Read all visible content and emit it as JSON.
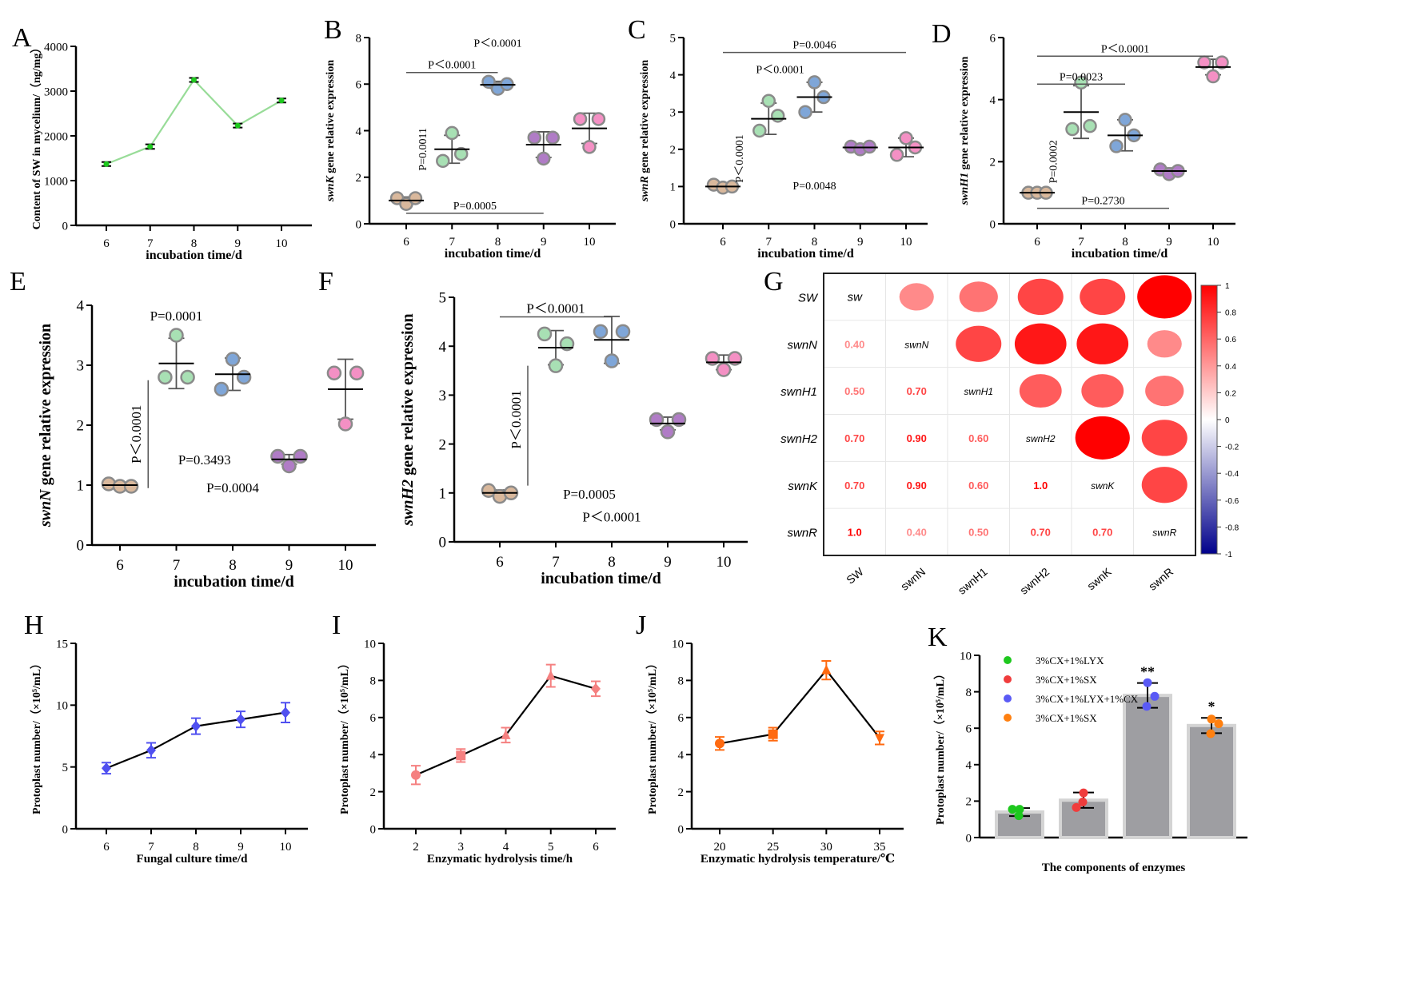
{
  "chart_data": [
    {
      "panel": "A",
      "type": "line",
      "x": [
        6,
        7,
        8,
        9,
        10
      ],
      "y": [
        1370,
        1760,
        3250,
        2230,
        2790
      ],
      "yerr": [
        45,
        50,
        45,
        45,
        45
      ],
      "ylim": [
        0,
        4000
      ],
      "yticks": [
        0,
        1000,
        2000,
        3000,
        4000
      ],
      "xlabel": "incubation time/d",
      "ylabel": "Content of SW in mycelium/（ng/mg）",
      "line_color": "#98dc98",
      "marker_color": "#1ec81e",
      "marker": "circle"
    },
    {
      "panel": "B",
      "type": "dots",
      "x": [
        6,
        7,
        8,
        9,
        10
      ],
      "ylim": [
        0,
        8
      ],
      "yticks": [
        0,
        2,
        4,
        6,
        8
      ],
      "xlabel": "incubation time/d",
      "ylabel_gene": "swnK",
      "ylabel": " gene relative expression",
      "points": [
        [
          1.1,
          0.85,
          1.1
        ],
        [
          2.7,
          3.9,
          3.0
        ],
        [
          6.1,
          5.8,
          6.0
        ],
        [
          3.7,
          2.8,
          3.7
        ],
        [
          4.5,
          3.3,
          4.5
        ]
      ],
      "mean": [
        1.0,
        3.2,
        5.97,
        3.4,
        4.1
      ],
      "sd": [
        0.15,
        0.6,
        0.15,
        0.55,
        0.65
      ],
      "annotations": [
        {
          "text": "P＜0.0001",
          "x": 8,
          "y": 7.6
        },
        {
          "text": "P＜0.0001",
          "from": 6,
          "to": 8,
          "y": 6.5
        },
        {
          "text": "P=0.0011",
          "x": 6.35,
          "y": 3.2,
          "vertical": true
        },
        {
          "text": "P=0.0005",
          "from": 6,
          "to": 9,
          "y": 0.45
        }
      ]
    },
    {
      "panel": "C",
      "type": "dots",
      "x": [
        6,
        7,
        8,
        9,
        10
      ],
      "ylim": [
        0,
        5
      ],
      "yticks": [
        0,
        1,
        2,
        3,
        4,
        5
      ],
      "xlabel": "incubation time/d",
      "ylabel_gene": "swnR",
      "ylabel": " gene relative expression",
      "points": [
        [
          1.05,
          0.97,
          1.0
        ],
        [
          2.5,
          3.3,
          2.9
        ],
        [
          3.0,
          3.8,
          3.4
        ],
        [
          2.07,
          2.0,
          2.07
        ],
        [
          1.85,
          2.3,
          2.05
        ]
      ],
      "mean": [
        1.0,
        2.82,
        3.4,
        2.05,
        2.05
      ],
      "sd": [
        0.05,
        0.42,
        0.4,
        0.05,
        0.25
      ],
      "annotations": [
        {
          "text": "P=0.0046",
          "from": 6,
          "to": 10,
          "y": 4.6
        },
        {
          "text": "P＜0.0001",
          "x": 7.25,
          "y": 4.05
        },
        {
          "text": "P＜0.0001",
          "x": 6.35,
          "y": 1.75,
          "vertical": true
        },
        {
          "text": "P=0.0048",
          "x": 8,
          "y": 0.92
        }
      ]
    },
    {
      "panel": "D",
      "type": "dots",
      "x": [
        6,
        7,
        8,
        9,
        10
      ],
      "ylim": [
        0,
        6
      ],
      "yticks": [
        0,
        2,
        4,
        6
      ],
      "xlabel": "incubation time/d",
      "ylabel_gene": "swnH1",
      "ylabel": " gene relative expression",
      "points": [
        [
          1.0,
          1.0,
          1.0
        ],
        [
          3.05,
          4.55,
          3.15
        ],
        [
          2.5,
          3.35,
          2.85
        ],
        [
          1.75,
          1.6,
          1.7
        ],
        [
          5.2,
          4.75,
          5.2
        ]
      ],
      "mean": [
        1.0,
        3.6,
        2.85,
        1.7,
        5.05
      ],
      "sd": [
        0.03,
        0.85,
        0.5,
        0.1,
        0.25
      ],
      "annotations": [
        {
          "text": "P＜0.0001",
          "from": 6,
          "to": 10,
          "y": 5.4
        },
        {
          "text": "P=0.0023",
          "from": 6,
          "to": 8,
          "y": 4.5
        },
        {
          "text": "P=0.0002",
          "x": 6.35,
          "y": 2.0,
          "vertical": true
        },
        {
          "text": "P=0.2730",
          "from": 6,
          "to": 9,
          "y": 0.5
        }
      ]
    },
    {
      "panel": "E",
      "type": "dots",
      "x": [
        6,
        7,
        8,
        9,
        10
      ],
      "ylim": [
        0,
        4
      ],
      "yticks": [
        0,
        1,
        2,
        3,
        4
      ],
      "xlabel": "incubation time/d",
      "ylabel_gene": "swnN",
      "ylabel": " gene relative expression",
      "points": [
        [
          1.02,
          0.98,
          0.98
        ],
        [
          2.8,
          3.5,
          2.8
        ],
        [
          2.6,
          3.1,
          2.8
        ],
        [
          1.48,
          1.32,
          1.48
        ],
        [
          2.87,
          2.02,
          2.87
        ]
      ],
      "mean": [
        1.0,
        3.03,
        2.85,
        1.43,
        2.6
      ],
      "sd": [
        0.03,
        0.42,
        0.27,
        0.08,
        0.5
      ],
      "annotations": [
        {
          "text": "P=0.0001",
          "x": 7,
          "y": 3.75
        },
        {
          "text": "P＜0.0001",
          "vline_x": 6.5,
          "from": 0.95,
          "to": 2.75,
          "vertical": true,
          "x": 6.3,
          "y": 1.85
        },
        {
          "text": "P=0.3493",
          "x": 7.5,
          "y": 1.35
        },
        {
          "text": "P=0.0004",
          "x": 8,
          "y": 0.88
        }
      ]
    },
    {
      "panel": "F",
      "type": "dots",
      "x": [
        6,
        7,
        8,
        9,
        10
      ],
      "ylim": [
        0,
        5
      ],
      "yticks": [
        0,
        1,
        2,
        3,
        4,
        5
      ],
      "xlabel": "incubation time/d",
      "ylabel_gene": "swnH2",
      "ylabel": " gene relative expression",
      "points": [
        [
          1.05,
          0.93,
          1.0
        ],
        [
          4.25,
          3.6,
          4.05
        ],
        [
          4.3,
          3.7,
          4.3
        ],
        [
          2.5,
          2.25,
          2.5
        ],
        [
          3.75,
          3.52,
          3.75
        ]
      ],
      "mean": [
        1.0,
        3.97,
        4.13,
        2.42,
        3.67
      ],
      "sd": [
        0.06,
        0.35,
        0.48,
        0.13,
        0.15
      ],
      "annotations": [
        {
          "text": "P＜0.0001",
          "from": 6,
          "to": 8,
          "y": 4.6
        },
        {
          "text": "P＜0.0001",
          "vline_x": 6.5,
          "from": 1.15,
          "to": 3.6,
          "vertical": true,
          "x": 6.3,
          "y": 2.5
        },
        {
          "text": "P=0.0005",
          "x": 7.6,
          "y": 0.88
        },
        {
          "text": "P＜0.0001",
          "x": 8,
          "y": 0.42
        }
      ]
    },
    {
      "panel": "G",
      "type": "heatmap",
      "row_labels": [
        "SW",
        "swnN",
        "swnH1",
        "swnH2",
        "swnK",
        "swnR"
      ],
      "col_labels": [
        "SW",
        "swnN",
        "swnH1",
        "swnH2",
        "swnK",
        "swnR"
      ],
      "diag_labels": [
        "sw",
        "swnN",
        "swnH1",
        "swnH2",
        "swnK",
        "swnR"
      ],
      "lower": [
        [],
        [
          "0.40"
        ],
        [
          "0.50",
          "0.70"
        ],
        [
          "0.70",
          "0.90",
          "0.60"
        ],
        [
          "0.70",
          "0.90",
          "0.60",
          "1.0"
        ],
        [
          "1.0",
          "0.40",
          "0.50",
          "0.70",
          "0.70"
        ]
      ],
      "colorbar_ticks": [
        "1",
        "0.8",
        "0.6",
        "0.4",
        "0.2",
        "0",
        "-0.2",
        "-0.4",
        "-0.6",
        "-0.8",
        "-1"
      ],
      "colorbar_colors": [
        "#ff0000",
        "#ffffff",
        "#00008b"
      ]
    },
    {
      "panel": "H",
      "type": "line",
      "x": [
        6,
        7,
        8,
        9,
        10
      ],
      "y": [
        4.9,
        6.35,
        8.3,
        8.85,
        9.4
      ],
      "yerr": [
        0.45,
        0.6,
        0.65,
        0.65,
        0.8
      ],
      "ylim": [
        0,
        15
      ],
      "yticks": [
        0,
        5,
        10,
        15
      ],
      "xlabel": "Fungal culture time/d",
      "ylabel": "Protoplast number/（×10⁵/mL）",
      "line_color": "#000000",
      "marker_color": "#5050f0",
      "marker": "diamond"
    },
    {
      "panel": "I",
      "type": "line",
      "x": [
        2,
        3,
        4,
        5,
        6
      ],
      "y": [
        2.9,
        3.95,
        5.05,
        8.25,
        7.55
      ],
      "yerr": [
        0.5,
        0.35,
        0.4,
        0.6,
        0.4
      ],
      "ylim": [
        0,
        10
      ],
      "yticks": [
        0,
        2,
        4,
        6,
        8,
        10
      ],
      "xlabel": "Enzymatic hydrolysis time/h",
      "ylabel": "Protoplast number/（×10⁵/mL）",
      "line_color": "#000000",
      "marker_color": "#f58080",
      "marker": "mixed"
    },
    {
      "panel": "J",
      "type": "line",
      "x": [
        20,
        25,
        30,
        35
      ],
      "y": [
        4.6,
        5.1,
        8.55,
        4.9
      ],
      "yerr": [
        0.35,
        0.35,
        0.5,
        0.35
      ],
      "ylim": [
        0,
        10
      ],
      "yticks": [
        0,
        2,
        4,
        6,
        8,
        10
      ],
      "xlabel": "Enzymatic hydrolysis temperature/℃",
      "ylabel": "Protoplast number/（×10⁵/mL）",
      "line_color": "#000000",
      "marker_color": "#ff6a10",
      "marker": "mixed"
    },
    {
      "panel": "K",
      "type": "bar",
      "values": [
        1.4,
        2.05,
        7.8,
        6.15
      ],
      "sd": [
        0.22,
        0.42,
        0.68,
        0.42
      ],
      "points": [
        [
          1.55,
          1.55,
          1.2
        ],
        [
          2.45,
          1.65,
          1.95
        ],
        [
          8.5,
          7.75,
          7.2
        ],
        [
          6.5,
          6.25,
          5.7
        ]
      ],
      "stars": [
        "",
        "",
        "**",
        "*"
      ],
      "ylim": [
        0,
        10
      ],
      "yticks": [
        0,
        2,
        4,
        6,
        8,
        10
      ],
      "xlabel": "The components of enzymes",
      "ylabel": "Protoplast number/（×10⁵/mL）",
      "legend": [
        {
          "label": "3%CX+1%LYX",
          "color": "#1ec81e"
        },
        {
          "label": "3%CX+1%SX",
          "color": "#f03c3c"
        },
        {
          "label": "3%CX+1%LYX+1%CX",
          "color": "#5a5af5"
        },
        {
          "label": "3%CX+1%SX",
          "color": "#ff8010"
        }
      ],
      "bar_color": "#9e9ea2"
    }
  ],
  "dot_colors": [
    "#d9b89c",
    "#a8e0b4",
    "#7fa6d8",
    "#b07cc6",
    "#f490c4"
  ]
}
